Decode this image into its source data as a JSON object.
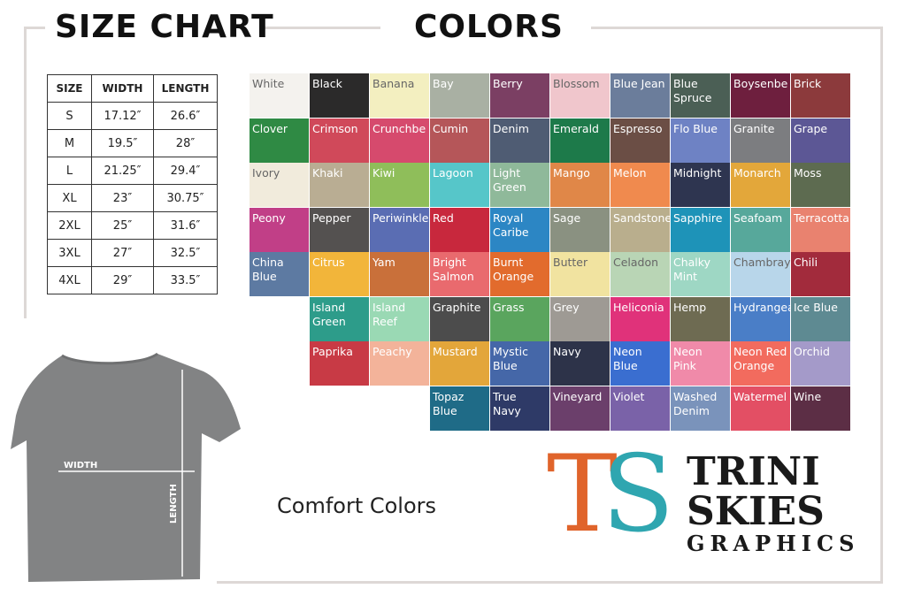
{
  "header": {
    "size_title": "SIZE CHART",
    "colors_title": "COLORS"
  },
  "size_table": {
    "columns": [
      "SIZE",
      "WIDTH",
      "LENGTH"
    ],
    "rows": [
      [
        "S",
        "17.12″",
        "26.6″"
      ],
      [
        "M",
        "19.5″",
        "28″"
      ],
      [
        "L",
        "21.25″",
        "29.4″"
      ],
      [
        "XL",
        "23″",
        "30.75″"
      ],
      [
        "2XL",
        "25″",
        "31.6″"
      ],
      [
        "3XL",
        "27″",
        "32.5″"
      ],
      [
        "4XL",
        "29″",
        "33.5″"
      ]
    ]
  },
  "colors": {
    "rows": [
      [
        {
          "name": "White",
          "color": "#f4f2ee"
        },
        {
          "name": "Black",
          "color": "#2b2a2a"
        },
        {
          "name": "Banana",
          "color": "#f3efc0"
        },
        {
          "name": "Bay",
          "color": "#a9b0a3"
        },
        {
          "name": "Berry",
          "color": "#7b3f63"
        },
        {
          "name": "Blossom",
          "color": "#f0c6cc"
        },
        {
          "name": "Blue Jean",
          "color": "#6b7d9b"
        },
        {
          "name": "Blue Spruce",
          "color": "#4b5f55"
        },
        {
          "name": "Boysenbe",
          "color": "#6e1f3e"
        },
        {
          "name": "Brick",
          "color": "#8c3a3c"
        }
      ],
      [
        {
          "name": "Clover",
          "color": "#2f8a44"
        },
        {
          "name": "Crimson",
          "color": "#d0495a"
        },
        {
          "name": "Crunchbe",
          "color": "#d64a6d"
        },
        {
          "name": "Cumin",
          "color": "#b55659"
        },
        {
          "name": "Denim",
          "color": "#4f5c73"
        },
        {
          "name": "Emerald",
          "color": "#1d7a4a"
        },
        {
          "name": "Espresso",
          "color": "#6b4e45"
        },
        {
          "name": "Flo Blue",
          "color": "#6e82c4"
        },
        {
          "name": "Granite",
          "color": "#7c7d80"
        },
        {
          "name": "Grape",
          "color": "#5c5795"
        }
      ],
      [
        {
          "name": "Ivory",
          "color": "#f1ebdc"
        },
        {
          "name": "Khaki",
          "color": "#b9ad93"
        },
        {
          "name": "Kiwi",
          "color": "#8fbe5a"
        },
        {
          "name": "Lagoon",
          "color": "#56c6c9"
        },
        {
          "name": "Light Green",
          "color": "#8fb99a"
        },
        {
          "name": "Mango",
          "color": "#e08748"
        },
        {
          "name": "Melon",
          "color": "#f08a4e"
        },
        {
          "name": "Midnight",
          "color": "#2e3550"
        },
        {
          "name": "Monarch",
          "color": "#e3a73a"
        },
        {
          "name": "Moss",
          "color": "#5d6b50"
        }
      ],
      [
        {
          "name": "Peony",
          "color": "#c13f87"
        },
        {
          "name": "Pepper",
          "color": "#545150"
        },
        {
          "name": "Periwinkle",
          "color": "#5a6db3"
        },
        {
          "name": "Red",
          "color": "#c8283d"
        },
        {
          "name": "Royal Caribe",
          "color": "#2c86c4"
        },
        {
          "name": "Sage",
          "color": "#8a9181"
        },
        {
          "name": "Sandstone",
          "color": "#b9ae8d"
        },
        {
          "name": "Sapphire",
          "color": "#1e93b8"
        },
        {
          "name": "Seafoam",
          "color": "#57a89b"
        },
        {
          "name": "Terracotta",
          "color": "#e9826f"
        }
      ],
      [
        {
          "name": "China Blue",
          "color": "#5d7aa2"
        },
        {
          "name": "Citrus",
          "color": "#f2b53a"
        },
        {
          "name": "Yam",
          "color": "#c9703a"
        },
        {
          "name": "Bright Salmon",
          "color": "#e96a6e"
        },
        {
          "name": "Burnt Orange",
          "color": "#e26b2d"
        },
        {
          "name": "Butter",
          "color": "#f1e3a0"
        },
        {
          "name": "Celadon",
          "color": "#b9d5b5"
        },
        {
          "name": "Chalky Mint",
          "color": "#9ed7c4"
        },
        {
          "name": "Chambray",
          "color": "#b8d6ea"
        },
        {
          "name": "Chili",
          "color": "#a22b3c"
        }
      ],
      [
        {
          "name": "Island Green",
          "color": "#2d9c8a"
        },
        {
          "name": "Island Reef",
          "color": "#9ad9b4"
        },
        {
          "name": "Graphite",
          "color": "#4c4c4c"
        },
        {
          "name": "Grass",
          "color": "#5aa55e"
        },
        {
          "name": "Grey",
          "color": "#9e9a94"
        },
        {
          "name": "Heliconia",
          "color": "#e0327a"
        },
        {
          "name": "Hemp",
          "color": "#6e6b52"
        },
        {
          "name": "Hydrangea",
          "color": "#4a7ec7"
        },
        {
          "name": "Ice Blue",
          "color": "#5e8a92"
        }
      ],
      [
        {
          "name": "Paprika",
          "color": "#c83a45"
        },
        {
          "name": "Peachy",
          "color": "#f3b39a"
        },
        {
          "name": "Mustard",
          "color": "#e3a63a"
        },
        {
          "name": "Mystic Blue",
          "color": "#4567a8"
        },
        {
          "name": "Navy",
          "color": "#2d3349"
        },
        {
          "name": "Neon Blue",
          "color": "#3a6ed0"
        },
        {
          "name": "Neon Pink",
          "color": "#f08aa9"
        },
        {
          "name": "Neon Red Orange",
          "color": "#f26b5e"
        },
        {
          "name": "Orchid",
          "color": "#a49ac9"
        }
      ],
      [
        {
          "name": "Topaz Blue",
          "color": "#1f6b87"
        },
        {
          "name": "True Navy",
          "color": "#2e3a67"
        },
        {
          "name": "Vineyard",
          "color": "#6b3f6b"
        },
        {
          "name": "Violet",
          "color": "#7a62a8"
        },
        {
          "name": "Washed Denim",
          "color": "#7a93bb"
        },
        {
          "name": "Watermel",
          "color": "#e34f64"
        },
        {
          "name": "Wine",
          "color": "#5c2e45"
        }
      ]
    ]
  },
  "shirt": {
    "width_label": "WIDTH",
    "length_label": "LENGTH"
  },
  "brand": {
    "line": "Comfort Colors"
  },
  "logo": {
    "monogram_t": "T",
    "monogram_s": "S",
    "line1": "TRINI",
    "line2": "SKIES",
    "line3": "GRAPHICS"
  }
}
